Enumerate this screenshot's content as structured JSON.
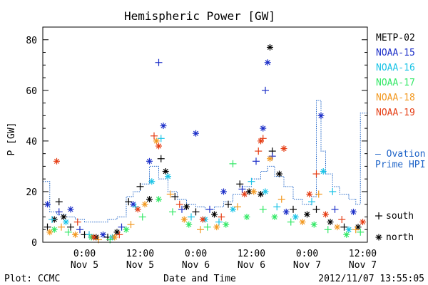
{
  "chart_data": {
    "type": "scatter",
    "title": "Hemispheric Power [GW]",
    "xlabel": "Date and Time",
    "ylabel": "P [GW]",
    "ylim": [
      0,
      85
    ],
    "xlim": [
      "2012-11-04 15:00",
      "2012-11-07 13:00"
    ],
    "yticks": [
      0,
      20,
      40,
      60,
      80
    ],
    "xticks": [
      {
        "t": "2012-11-05 00:00",
        "time": "0:00",
        "date": "Nov 5"
      },
      {
        "t": "2012-11-05 12:00",
        "time": "12:00",
        "date": "Nov 5"
      },
      {
        "t": "2012-11-06 00:00",
        "time": "0:00",
        "date": "Nov 6"
      },
      {
        "t": "2012-11-06 12:00",
        "time": "12:00",
        "date": "Nov 6"
      },
      {
        "t": "2012-11-07 00:00",
        "time": "0:00",
        "date": "Nov 7"
      },
      {
        "t": "2012-11-07 12:00",
        "time": "12:00",
        "date": "Nov 7"
      }
    ],
    "grid": false,
    "legend_position": "right",
    "series": [
      {
        "name": "METP-02",
        "color": "#000000",
        "points": [
          [
            "2012-11-04 16:00",
            6,
            "s"
          ],
          [
            "2012-11-04 17:30",
            9,
            "n"
          ],
          [
            "2012-11-04 18:30",
            16,
            "s"
          ],
          [
            "2012-11-04 19:30",
            10,
            "n"
          ],
          [
            "2012-11-04 21:00",
            6,
            "s"
          ],
          [
            "2012-11-05 00:00",
            3,
            "s"
          ],
          [
            "2012-11-05 02:30",
            2,
            "n"
          ],
          [
            "2012-11-05 05:00",
            2,
            "s"
          ],
          [
            "2012-11-05 07:00",
            4,
            "n"
          ],
          [
            "2012-11-05 09:30",
            16,
            "s"
          ],
          [
            "2012-11-05 12:00",
            22,
            "s"
          ],
          [
            "2012-11-05 14:00",
            17,
            "n"
          ],
          [
            "2012-11-05 16:30",
            33,
            "s"
          ],
          [
            "2012-11-05 17:30",
            28,
            "n"
          ],
          [
            "2012-11-05 19:30",
            18,
            "s"
          ],
          [
            "2012-11-05 22:00",
            14,
            "n"
          ],
          [
            "2012-11-06 00:00",
            12,
            "s"
          ],
          [
            "2012-11-06 04:00",
            11,
            "n"
          ],
          [
            "2012-11-06 07:00",
            15,
            "s"
          ],
          [
            "2012-11-06 09:30",
            23,
            "s"
          ],
          [
            "2012-11-06 11:30",
            20,
            "n"
          ],
          [
            "2012-11-06 14:00",
            19,
            "n"
          ],
          [
            "2012-11-06 16:00",
            77,
            "n"
          ],
          [
            "2012-11-06 16:30",
            36,
            "s"
          ],
          [
            "2012-11-06 18:00",
            27,
            "n"
          ],
          [
            "2012-11-06 21:00",
            13,
            "s"
          ],
          [
            "2012-11-07 00:00",
            11,
            "n"
          ],
          [
            "2012-11-07 02:00",
            13,
            "s"
          ],
          [
            "2012-11-07 05:00",
            8,
            "n"
          ],
          [
            "2012-11-07 08:00",
            6,
            "s"
          ],
          [
            "2012-11-07 11:00",
            6,
            "n"
          ]
        ]
      },
      {
        "name": "NOAA-15",
        "color": "#1c2fc8",
        "points": [
          [
            "2012-11-04 16:00",
            15,
            "n"
          ],
          [
            "2012-11-04 18:30",
            12,
            "s"
          ],
          [
            "2012-11-04 21:00",
            13,
            "n"
          ],
          [
            "2012-11-04 23:00",
            5,
            "s"
          ],
          [
            "2012-11-05 04:00",
            3,
            "n"
          ],
          [
            "2012-11-05 08:00",
            6,
            "s"
          ],
          [
            "2012-11-05 10:30",
            15,
            "n"
          ],
          [
            "2012-11-05 14:00",
            32,
            "n"
          ],
          [
            "2012-11-05 16:00",
            71,
            "s"
          ],
          [
            "2012-11-05 17:00",
            46,
            "n"
          ],
          [
            "2012-11-05 21:00",
            13,
            "s"
          ],
          [
            "2012-11-06 00:00",
            43,
            "n"
          ],
          [
            "2012-11-06 03:00",
            13,
            "s"
          ],
          [
            "2012-11-06 06:00",
            20,
            "n"
          ],
          [
            "2012-11-06 10:00",
            21,
            "s"
          ],
          [
            "2012-11-06 13:00",
            32,
            "s"
          ],
          [
            "2012-11-06 14:30",
            45,
            "n"
          ],
          [
            "2012-11-06 15:00",
            60,
            "s"
          ],
          [
            "2012-11-06 15:30",
            71,
            "n"
          ],
          [
            "2012-11-06 16:30",
            34,
            "s"
          ],
          [
            "2012-11-06 19:30",
            12,
            "n"
          ],
          [
            "2012-11-07 03:00",
            50,
            "n"
          ],
          [
            "2012-11-07 06:00",
            13,
            "s"
          ],
          [
            "2012-11-07 10:00",
            12,
            "n"
          ]
        ]
      },
      {
        "name": "NOAA-16",
        "color": "#19c3e6",
        "points": [
          [
            "2012-11-04 17:00",
            9,
            "s"
          ],
          [
            "2012-11-04 20:00",
            8,
            "n"
          ],
          [
            "2012-11-05 01:00",
            3,
            "s"
          ],
          [
            "2012-11-05 06:00",
            2,
            "n"
          ],
          [
            "2012-11-05 11:00",
            14,
            "s"
          ],
          [
            "2012-11-05 14:30",
            24,
            "n"
          ],
          [
            "2012-11-05 16:30",
            41,
            "s"
          ],
          [
            "2012-11-05 18:00",
            26,
            "n"
          ],
          [
            "2012-11-05 23:00",
            10,
            "s"
          ],
          [
            "2012-11-06 02:00",
            9,
            "n"
          ],
          [
            "2012-11-06 05:00",
            8,
            "s"
          ],
          [
            "2012-11-06 08:00",
            13,
            "n"
          ],
          [
            "2012-11-06 12:00",
            24,
            "s"
          ],
          [
            "2012-11-06 15:00",
            20,
            "n"
          ],
          [
            "2012-11-06 17:30",
            14,
            "s"
          ],
          [
            "2012-11-06 21:30",
            10,
            "n"
          ],
          [
            "2012-11-07 01:00",
            16,
            "s"
          ],
          [
            "2012-11-07 03:30",
            28,
            "n"
          ],
          [
            "2012-11-07 05:30",
            20,
            "s"
          ],
          [
            "2012-11-07 09:00",
            5,
            "n"
          ]
        ]
      },
      {
        "name": "NOAA-17",
        "color": "#33e866",
        "points": [
          [
            "2012-11-04 17:30",
            5,
            "n"
          ],
          [
            "2012-11-04 20:30",
            4,
            "s"
          ],
          [
            "2012-11-05 01:30",
            2,
            "n"
          ],
          [
            "2012-11-05 05:30",
            1,
            "s"
          ],
          [
            "2012-11-05 09:00",
            5,
            "n"
          ],
          [
            "2012-11-05 12:30",
            10,
            "s"
          ],
          [
            "2012-11-05 16:00",
            17,
            "n"
          ],
          [
            "2012-11-05 19:00",
            12,
            "s"
          ],
          [
            "2012-11-05 22:30",
            7,
            "n"
          ],
          [
            "2012-11-06 02:30",
            6,
            "s"
          ],
          [
            "2012-11-06 06:30",
            7,
            "n"
          ],
          [
            "2012-11-06 08:00",
            31,
            "s"
          ],
          [
            "2012-11-06 11:00",
            10,
            "n"
          ],
          [
            "2012-11-06 14:30",
            13,
            "s"
          ],
          [
            "2012-11-06 17:00",
            10,
            "n"
          ],
          [
            "2012-11-06 20:30",
            8,
            "s"
          ],
          [
            "2012-11-07 01:30",
            7,
            "n"
          ],
          [
            "2012-11-07 04:30",
            5,
            "s"
          ],
          [
            "2012-11-07 08:30",
            3,
            "n"
          ],
          [
            "2012-11-07 11:30",
            4,
            "s"
          ]
        ]
      },
      {
        "name": "NOAA-18",
        "color": "#f2981f",
        "points": [
          [
            "2012-11-04 16:30",
            4,
            "n"
          ],
          [
            "2012-11-04 19:00",
            6,
            "s"
          ],
          [
            "2012-11-04 22:00",
            3,
            "n"
          ],
          [
            "2012-11-05 03:00",
            1,
            "s"
          ],
          [
            "2012-11-05 06:30",
            2,
            "n"
          ],
          [
            "2012-11-05 10:00",
            7,
            "s"
          ],
          [
            "2012-11-05 13:00",
            15,
            "n"
          ],
          [
            "2012-11-05 15:30",
            40,
            "n"
          ],
          [
            "2012-11-05 18:30",
            19,
            "s"
          ],
          [
            "2012-11-05 21:30",
            9,
            "n"
          ],
          [
            "2012-11-06 01:00",
            5,
            "s"
          ],
          [
            "2012-11-06 04:30",
            6,
            "n"
          ],
          [
            "2012-11-06 09:00",
            14,
            "s"
          ],
          [
            "2012-11-06 12:30",
            20,
            "n"
          ],
          [
            "2012-11-06 16:00",
            33,
            "n"
          ],
          [
            "2012-11-06 18:30",
            17,
            "s"
          ],
          [
            "2012-11-06 23:00",
            8,
            "n"
          ],
          [
            "2012-11-07 02:30",
            19,
            "s"
          ],
          [
            "2012-11-07 06:30",
            6,
            "n"
          ],
          [
            "2012-11-07 10:30",
            5,
            "s"
          ]
        ]
      },
      {
        "name": "NOAA-19",
        "color": "#e53d14",
        "points": [
          [
            "2012-11-04 18:00",
            32,
            "n"
          ],
          [
            "2012-11-04 22:30",
            8,
            "s"
          ],
          [
            "2012-11-05 02:00",
            2,
            "n"
          ],
          [
            "2012-11-05 07:30",
            3,
            "s"
          ],
          [
            "2012-11-05 11:30",
            13,
            "n"
          ],
          [
            "2012-11-05 15:00",
            42,
            "s"
          ],
          [
            "2012-11-05 16:00",
            38,
            "n"
          ],
          [
            "2012-11-05 20:30",
            15,
            "s"
          ],
          [
            "2012-11-06 01:30",
            9,
            "n"
          ],
          [
            "2012-11-06 05:30",
            10,
            "s"
          ],
          [
            "2012-11-06 10:30",
            19,
            "n"
          ],
          [
            "2012-11-06 13:30",
            36,
            "s"
          ],
          [
            "2012-11-06 14:00",
            40,
            "n"
          ],
          [
            "2012-11-06 14:30",
            41,
            "s"
          ],
          [
            "2012-11-06 19:00",
            37,
            "n"
          ],
          [
            "2012-11-07 00:30",
            19,
            "n"
          ],
          [
            "2012-11-07 02:00",
            27,
            "s"
          ],
          [
            "2012-11-07 04:00",
            11,
            "n"
          ],
          [
            "2012-11-07 07:30",
            9,
            "s"
          ],
          [
            "2012-11-07 12:00",
            8,
            "n"
          ]
        ]
      }
    ],
    "ovation": {
      "name": "Ovation Prime HPI",
      "name_lines": [
        "— Ovation",
        "Prime HPI"
      ],
      "color": "#1f64c8",
      "steps": [
        [
          "2012-11-04 15:00",
          24
        ],
        [
          "2012-11-04 16:30",
          12
        ],
        [
          "2012-11-04 18:00",
          11
        ],
        [
          "2012-11-04 20:00",
          10
        ],
        [
          "2012-11-04 22:00",
          9
        ],
        [
          "2012-11-05 00:00",
          8
        ],
        [
          "2012-11-05 03:00",
          8
        ],
        [
          "2012-11-05 05:00",
          9
        ],
        [
          "2012-11-05 07:00",
          10
        ],
        [
          "2012-11-05 09:00",
          18
        ],
        [
          "2012-11-05 10:30",
          20
        ],
        [
          "2012-11-05 12:00",
          23
        ],
        [
          "2012-11-05 14:00",
          30
        ],
        [
          "2012-11-05 16:00",
          25
        ],
        [
          "2012-11-05 18:00",
          20
        ],
        [
          "2012-11-05 20:00",
          17
        ],
        [
          "2012-11-05 22:00",
          15
        ],
        [
          "2012-11-06 00:00",
          14
        ],
        [
          "2012-11-06 02:00",
          13
        ],
        [
          "2012-11-06 04:00",
          14
        ],
        [
          "2012-11-06 06:00",
          16
        ],
        [
          "2012-11-06 08:00",
          19
        ],
        [
          "2012-11-06 10:00",
          22
        ],
        [
          "2012-11-06 12:00",
          25
        ],
        [
          "2012-11-06 14:00",
          28
        ],
        [
          "2012-11-06 15:30",
          30
        ],
        [
          "2012-11-06 17:00",
          26
        ],
        [
          "2012-11-06 19:00",
          22
        ],
        [
          "2012-11-06 21:00",
          17
        ],
        [
          "2012-11-06 23:00",
          15
        ],
        [
          "2012-11-07 01:00",
          18
        ],
        [
          "2012-11-07 02:00",
          56
        ],
        [
          "2012-11-07 03:00",
          36
        ],
        [
          "2012-11-07 04:00",
          27
        ],
        [
          "2012-11-07 05:30",
          22
        ],
        [
          "2012-11-07 07:00",
          19
        ],
        [
          "2012-11-07 09:00",
          17
        ],
        [
          "2012-11-07 10:30",
          15
        ],
        [
          "2012-11-07 11:30",
          51
        ],
        [
          "2012-11-07 13:00",
          51
        ]
      ]
    },
    "marker_legend": [
      {
        "symbol": "+",
        "label": "south"
      },
      {
        "symbol": "*",
        "label": "north"
      }
    ]
  },
  "footer": {
    "left": "Plot: CCMC",
    "timestamp": "2012/11/07 13:55:05"
  }
}
